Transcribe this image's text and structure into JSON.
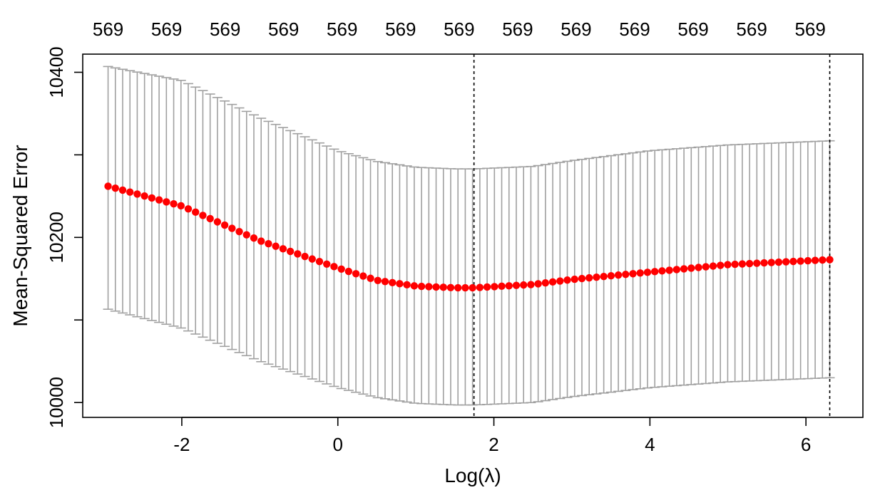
{
  "chart_data": {
    "type": "scatter",
    "xlabel": "Log(λ)",
    "ylabel": "Mean-Squared Error",
    "xlim": [
      -3.27,
      6.73
    ],
    "ylim": [
      9982,
      10422
    ],
    "x_ticks": [
      "-2",
      "0",
      "2",
      "4",
      "6"
    ],
    "x_tick_values": [
      -2,
      0,
      2,
      4,
      6
    ],
    "y_ticks": [
      "10000",
      "10200",
      "10400"
    ],
    "y_tick_values": [
      10000,
      10200,
      10400
    ],
    "top_axis_labels": [
      "569",
      "569",
      "569",
      "569",
      "569",
      "569",
      "569",
      "569",
      "569",
      "569",
      "569",
      "569",
      "569"
    ],
    "top_axis_values": [
      -2.945,
      -2.195,
      -1.445,
      -0.695,
      0.055,
      0.805,
      1.555,
      2.305,
      3.055,
      3.805,
      4.555,
      5.305,
      6.055
    ],
    "vlines": [
      1.745,
      6.305
    ],
    "x_start": -2.945,
    "x_end": 6.305,
    "n_points": 100,
    "mse_curve": [
      [
        -2.945,
        10262
      ],
      [
        -2.0,
        10238
      ],
      [
        -1.0,
        10196
      ],
      [
        0.0,
        10163
      ],
      [
        0.5,
        10148
      ],
      [
        1.0,
        10141
      ],
      [
        1.5,
        10139
      ],
      [
        1.745,
        10139
      ],
      [
        2.5,
        10143
      ],
      [
        3.0,
        10149
      ],
      [
        4.0,
        10158
      ],
      [
        5.0,
        10167
      ],
      [
        6.305,
        10173
      ]
    ],
    "upper_curve": [
      [
        -2.945,
        10407
      ],
      [
        -2.0,
        10390
      ],
      [
        -1.0,
        10345
      ],
      [
        0.0,
        10305
      ],
      [
        0.5,
        10292
      ],
      [
        1.0,
        10285
      ],
      [
        1.5,
        10283
      ],
      [
        1.745,
        10283
      ],
      [
        2.5,
        10286
      ],
      [
        3.0,
        10293
      ],
      [
        4.0,
        10305
      ],
      [
        5.0,
        10312
      ],
      [
        6.305,
        10317
      ]
    ],
    "lower_curve": [
      [
        -2.945,
        10113
      ],
      [
        -2.0,
        10090
      ],
      [
        -1.0,
        10050
      ],
      [
        0.0,
        10018
      ],
      [
        0.5,
        10006
      ],
      [
        1.0,
        9999
      ],
      [
        1.5,
        9997
      ],
      [
        1.745,
        9997
      ],
      [
        2.5,
        10000
      ],
      [
        3.0,
        10007
      ],
      [
        4.0,
        10018
      ],
      [
        5.0,
        10025
      ],
      [
        6.305,
        10030
      ]
    ],
    "colors": {
      "points": "#ff0000",
      "error_bars": "#a0a0a0",
      "axes": "#000000"
    }
  }
}
